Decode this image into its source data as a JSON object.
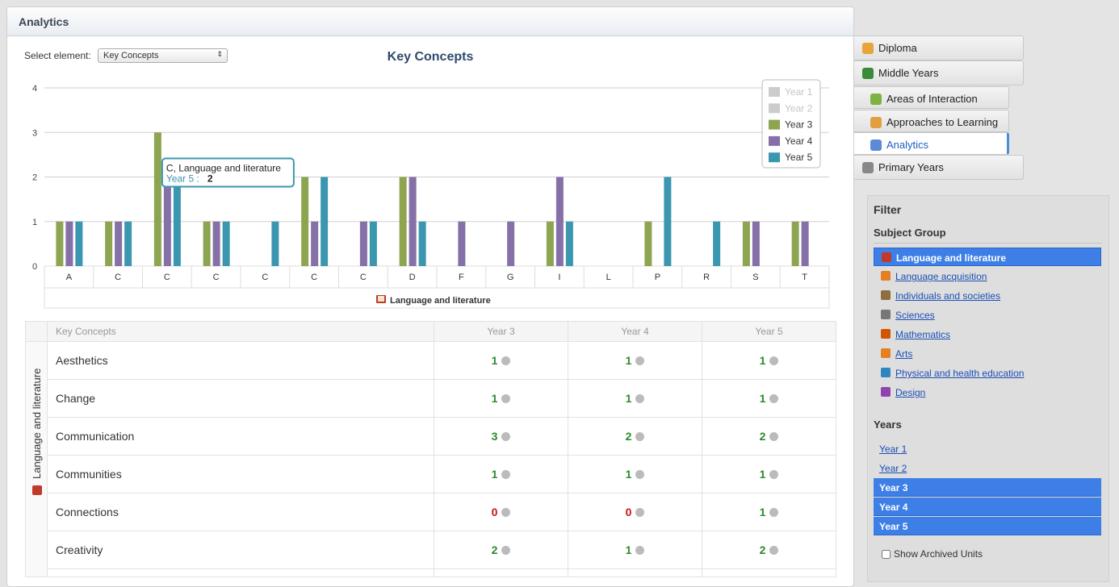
{
  "header": {
    "title": "Analytics"
  },
  "select": {
    "label": "Select element:",
    "value": "Key Concepts"
  },
  "chart_data": {
    "type": "bar",
    "title": "Key Concepts",
    "categories": [
      "A",
      "C",
      "C",
      "C",
      "C",
      "C",
      "C",
      "D",
      "F",
      "G",
      "I",
      "L",
      "P",
      "R",
      "S",
      "T"
    ],
    "xlabel": "Language and literature",
    "ylim": [
      0,
      4
    ],
    "yticks": [
      0,
      1,
      2,
      3,
      4
    ],
    "grid": true,
    "legend": "top-right",
    "series": [
      {
        "name": "Year 1",
        "color": "#cccccc",
        "hidden": true
      },
      {
        "name": "Year 2",
        "color": "#cccccc",
        "hidden": true
      },
      {
        "name": "Year 3",
        "color": "#8da550",
        "values": [
          1,
          1,
          3,
          1,
          0,
          2,
          0,
          2,
          0,
          0,
          1,
          0,
          1,
          0,
          1,
          1
        ]
      },
      {
        "name": "Year 4",
        "color": "#8670a8",
        "values": [
          1,
          1,
          2,
          1,
          0,
          1,
          1,
          2,
          1,
          1,
          2,
          0,
          0,
          0,
          1,
          1
        ]
      },
      {
        "name": "Year 5",
        "color": "#3b97b0",
        "values": [
          1,
          1,
          2,
          1,
          1,
          2,
          1,
          1,
          0,
          0,
          1,
          0,
          2,
          1,
          0,
          0
        ]
      }
    ],
    "tooltip": {
      "title": "C, Language and literature",
      "label": "Year 5 :",
      "value": 2
    }
  },
  "table": {
    "columns": [
      "Key Concepts",
      "Year 3",
      "Year 4",
      "Year 5"
    ],
    "group": "Language and literature",
    "rows": [
      [
        "Aesthetics",
        1,
        1,
        1
      ],
      [
        "Change",
        1,
        1,
        1
      ],
      [
        "Communication",
        3,
        2,
        2
      ],
      [
        "Communities",
        1,
        1,
        1
      ],
      [
        "Connections",
        0,
        0,
        1
      ],
      [
        "Creativity",
        2,
        1,
        2
      ]
    ]
  },
  "tabs": [
    "Diploma",
    "Middle Years",
    "Areas of Interaction",
    "Approaches to Learning",
    "Analytics",
    "Primary Years"
  ],
  "active_tab": 4,
  "filter": {
    "title": "Filter",
    "subject_title": "Subject Group",
    "subjects": [
      "Language and literature",
      "Language acquisition",
      "Individuals and societies",
      "Sciences",
      "Mathematics",
      "Arts",
      "Physical and health education",
      "Design"
    ],
    "selected_subject": 0,
    "years_title": "Years",
    "years": [
      "Year 1",
      "Year 2",
      "Year 3",
      "Year 4",
      "Year 5"
    ],
    "selected_years": [
      2,
      3,
      4
    ],
    "archived": "Show Archived Units"
  }
}
